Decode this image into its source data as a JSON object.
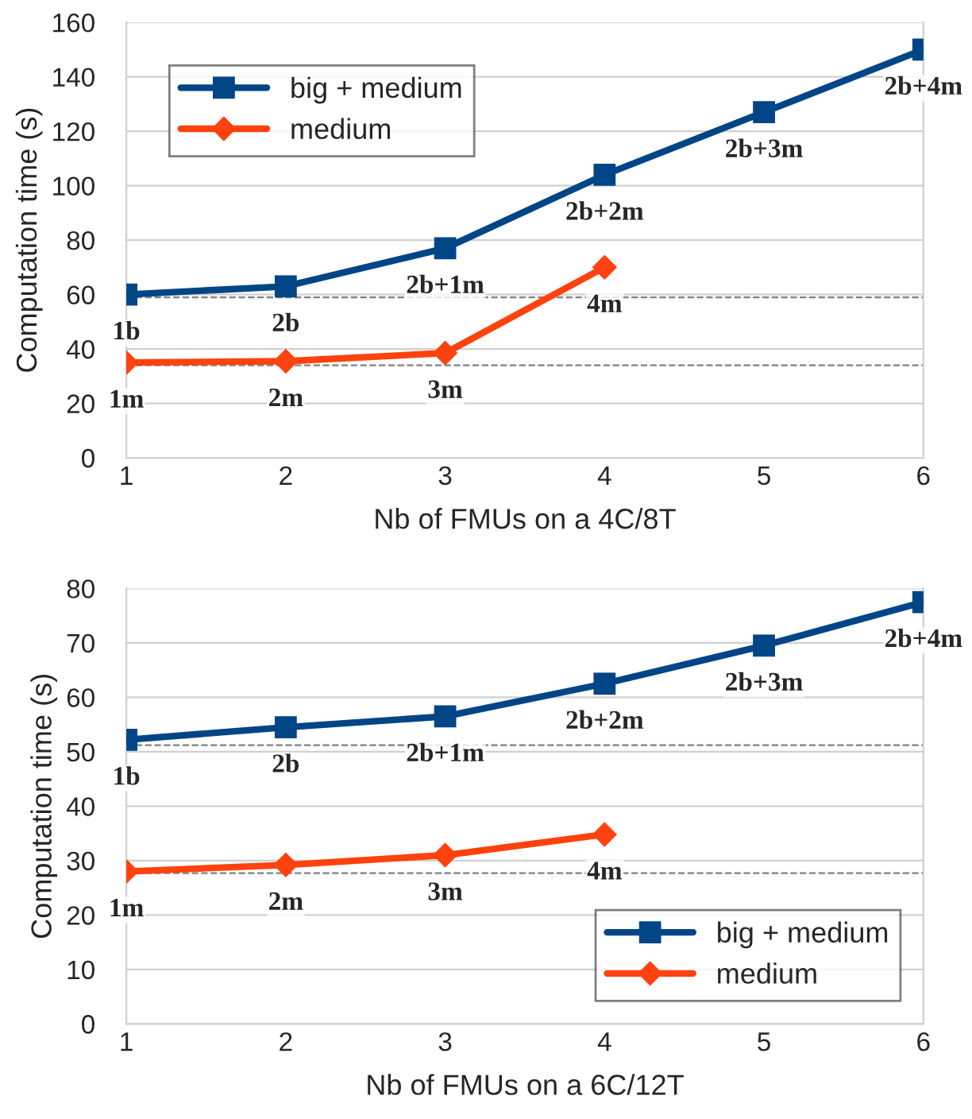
{
  "chart_data": [
    {
      "type": "line",
      "xlabel": "Nb of FMUs on a 4C/8T",
      "ylabel": "Computation time (s)",
      "x": [
        1,
        2,
        3,
        4,
        5,
        6
      ],
      "series": [
        {
          "name": "big + medium",
          "color": "#004586",
          "marker": "square",
          "values": [
            60,
            63,
            77,
            104,
            127,
            150
          ]
        },
        {
          "name": "medium",
          "color": "#ff420e",
          "marker": "diamond",
          "x": [
            1,
            2,
            3,
            4
          ],
          "values": [
            35,
            35.5,
            38.5,
            70
          ]
        }
      ],
      "xlim": [
        1,
        6
      ],
      "xticks": [
        1,
        2,
        3,
        4,
        5,
        6
      ],
      "ylim": [
        0,
        160
      ],
      "yticks": [
        0,
        20,
        40,
        60,
        80,
        100,
        120,
        140,
        160
      ],
      "grid": "y",
      "legend": "top left",
      "line_style": "solid",
      "ref_lines": [
        {
          "axis": "y",
          "value": 59,
          "color": "#808080",
          "line_style": "dashed"
        },
        {
          "axis": "y",
          "value": 34,
          "color": "#808080",
          "line_style": "dashed"
        }
      ],
      "annotations": [
        {
          "text": "1b",
          "x": 1,
          "y": 60
        },
        {
          "text": "2b",
          "x": 2,
          "y": 63
        },
        {
          "text": "2b+1m",
          "x": 3,
          "y": 77
        },
        {
          "text": "2b+2m",
          "x": 4,
          "y": 104
        },
        {
          "text": "2b+3m",
          "x": 5,
          "y": 127
        },
        {
          "text": "2b+4m",
          "x": 6,
          "y": 150
        },
        {
          "text": "1m",
          "x": 1,
          "y": 35
        },
        {
          "text": "2m",
          "x": 2,
          "y": 35.5
        },
        {
          "text": "3m",
          "x": 3,
          "y": 38.5
        },
        {
          "text": "4m",
          "x": 4,
          "y": 70
        }
      ]
    },
    {
      "type": "line",
      "xlabel": "Nb of FMUs on a 6C/12T",
      "ylabel": "Computation time (s)",
      "x": [
        1,
        2,
        3,
        4,
        5,
        6
      ],
      "series": [
        {
          "name": "big + medium",
          "color": "#004586",
          "marker": "square",
          "values": [
            52.2,
            54.5,
            56.5,
            62.5,
            69.5,
            77.5
          ]
        },
        {
          "name": "medium",
          "color": "#ff420e",
          "marker": "diamond",
          "x": [
            1,
            2,
            3,
            4
          ],
          "values": [
            28,
            29.2,
            31,
            34.8
          ]
        }
      ],
      "xlim": [
        1,
        6
      ],
      "xticks": [
        1,
        2,
        3,
        4,
        5,
        6
      ],
      "ylim": [
        0,
        80
      ],
      "yticks": [
        0,
        10,
        20,
        30,
        40,
        50,
        60,
        70,
        80
      ],
      "grid": "y",
      "legend": "bottom right",
      "line_style": "solid",
      "ref_lines": [
        {
          "axis": "y",
          "value": 51.2,
          "color": "#808080",
          "line_style": "dashed"
        },
        {
          "axis": "y",
          "value": 27.7,
          "color": "#808080",
          "line_style": "dashed"
        }
      ],
      "annotations": [
        {
          "text": "1b",
          "x": 1,
          "y": 52.2
        },
        {
          "text": "2b",
          "x": 2,
          "y": 54.5
        },
        {
          "text": "2b+1m",
          "x": 3,
          "y": 56.5
        },
        {
          "text": "2b+2m",
          "x": 4,
          "y": 62.5
        },
        {
          "text": "2b+3m",
          "x": 5,
          "y": 69.5
        },
        {
          "text": "2b+4m",
          "x": 6,
          "y": 77.5
        },
        {
          "text": "1m",
          "x": 1,
          "y": 28
        },
        {
          "text": "2m",
          "x": 2,
          "y": 29.2
        },
        {
          "text": "3m",
          "x": 3,
          "y": 31
        },
        {
          "text": "4m",
          "x": 4,
          "y": 34.8
        }
      ]
    }
  ]
}
